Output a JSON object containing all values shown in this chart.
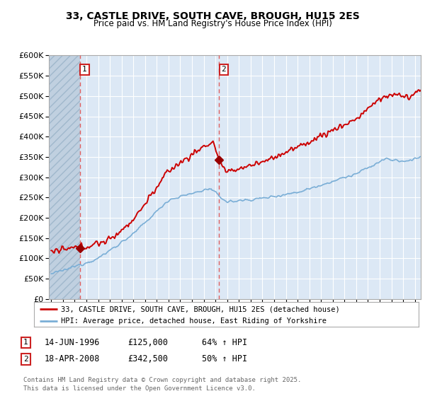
{
  "title": "33, CASTLE DRIVE, SOUTH CAVE, BROUGH, HU15 2ES",
  "subtitle": "Price paid vs. HM Land Registry's House Price Index (HPI)",
  "background_color": "#ffffff",
  "plot_bg_color": "#dce8f5",
  "grid_color": "#ffffff",
  "hatch_color": "#c0d0e0",
  "red_line_color": "#cc0000",
  "blue_line_color": "#7aaed6",
  "marker_color": "#990000",
  "dashed_line_color": "#e06060",
  "transaction1_date_num": 1996.45,
  "transaction1_price": 125000,
  "transaction1_label": "14-JUN-1996",
  "transaction1_pct": "64% ↑ HPI",
  "transaction2_date_num": 2008.3,
  "transaction2_price": 342500,
  "transaction2_label": "18-APR-2008",
  "transaction2_pct": "50% ↑ HPI",
  "legend1": "33, CASTLE DRIVE, SOUTH CAVE, BROUGH, HU15 2ES (detached house)",
  "legend2": "HPI: Average price, detached house, East Riding of Yorkshire",
  "footnote": "Contains HM Land Registry data © Crown copyright and database right 2025.\nThis data is licensed under the Open Government Licence v3.0.",
  "xmin": 1993.8,
  "xmax": 2025.5,
  "ymin": 0,
  "ymax": 600000
}
